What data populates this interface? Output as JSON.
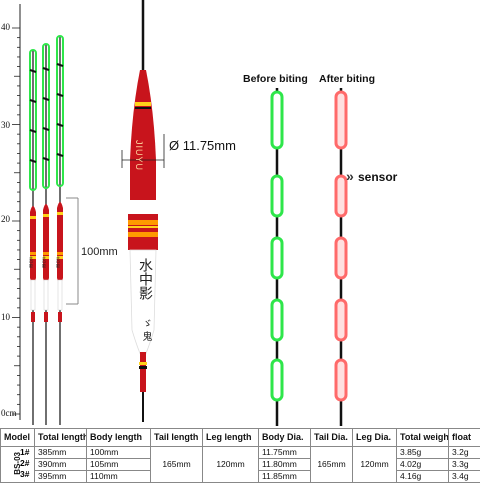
{
  "ruler": {
    "ticks": [
      "40",
      "30",
      "20",
      "10",
      "0cm"
    ]
  },
  "float": {
    "brand": "JIUYU",
    "brand_small": "JIUYU",
    "cjk_text": "水中影",
    "cjk_small": "水中影",
    "sign_text": "ゞ 鬼",
    "diameter": "Ø 11.75mm",
    "dim_100": "100mm"
  },
  "signal": {
    "before_label": "Before biting",
    "after_label": "After biting",
    "sensor_label": "sensor",
    "sensor_arrows": "»"
  },
  "colors": {
    "body_red": "#c8141c",
    "tip_green": "#2ee64a",
    "tip_red": "#ff6a6a",
    "band_orange": "#ff9a00",
    "band_yellow": "#ffd21a"
  },
  "table": {
    "side_label": "BS-03",
    "headers": [
      "Model",
      "Total length",
      "Body length",
      "Tail length",
      "Leg length",
      "Body Dia.",
      "Tail Dia.",
      "Leg Dia.",
      "Total weight",
      "float"
    ],
    "rows": [
      {
        "model": "1#",
        "total_length": "385mm",
        "body_length": "100mm",
        "body_dia": "11.75mm",
        "total_weight": "3.85g",
        "float": "3.2g"
      },
      {
        "model": "2#",
        "total_length": "390mm",
        "body_length": "105mm",
        "body_dia": "11.80mm",
        "total_weight": "4.02g",
        "float": "3.3g"
      },
      {
        "model": "3#",
        "total_length": "395mm",
        "body_length": "110mm",
        "body_dia": "11.85mm",
        "total_weight": "4.16g",
        "float": "3.4g"
      }
    ],
    "tail_length": "165mm",
    "leg_length": "120mm",
    "tail_dia": "165mm",
    "leg_dia": "120mm"
  }
}
